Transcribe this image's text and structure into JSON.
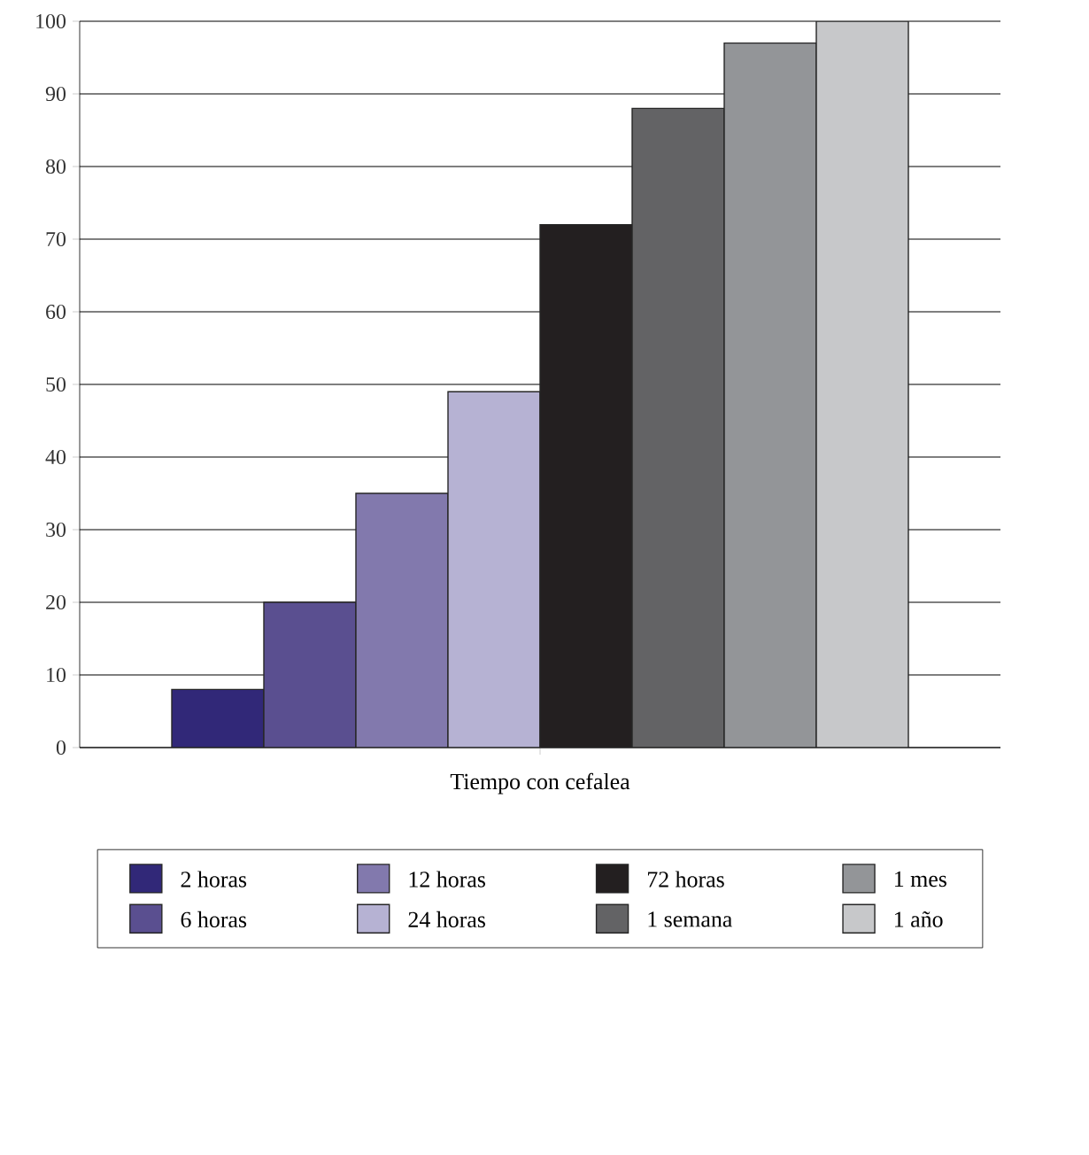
{
  "chart_data": {
    "type": "bar",
    "xlabel": "Tiempo con cefalea",
    "categories": [
      null
    ],
    "series": [
      {
        "name": "2 horas",
        "color": "#312878",
        "values": [
          8
        ]
      },
      {
        "name": "6 horas",
        "color": "#5a4f90",
        "values": [
          20
        ]
      },
      {
        "name": "12 horas",
        "color": "#8279ad",
        "values": [
          35
        ]
      },
      {
        "name": "24 horas",
        "color": "#b6b2d3",
        "values": [
          49
        ]
      },
      {
        "name": "72 horas",
        "color": "#231f20",
        "values": [
          72
        ]
      },
      {
        "name": "1 semana",
        "color": "#636365",
        "values": [
          88
        ]
      },
      {
        "name": "1 mes",
        "color": "#939598",
        "values": [
          97
        ]
      },
      {
        "name": "1 año",
        "color": "#c7c8ca",
        "values": [
          100
        ]
      }
    ],
    "ylim": [
      0,
      100
    ],
    "yticks": [
      0,
      10,
      20,
      30,
      40,
      50,
      60,
      70,
      80,
      90,
      100
    ],
    "grid": "y",
    "legend": "bottom"
  }
}
